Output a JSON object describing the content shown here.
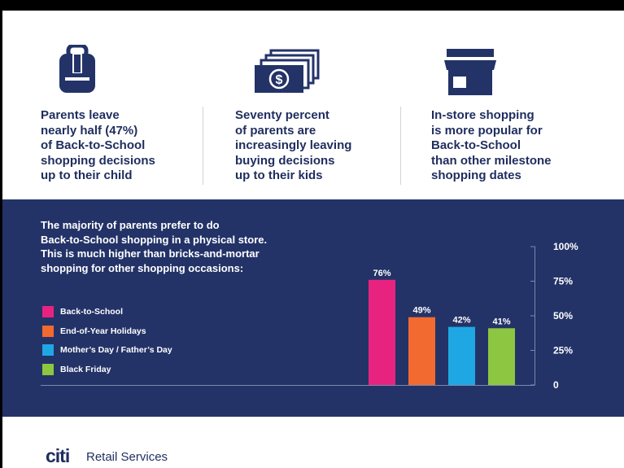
{
  "stats": [
    {
      "icon": "backpack-icon",
      "text": "Parents leave\nnearly half (47%)\nof Back-to-School\nshopping decisions\nup to their child"
    },
    {
      "icon": "money-stack-icon",
      "text": "Seventy percent\nof parents are\nincreasingly leaving\nbuying decisions\nup to their kids"
    },
    {
      "icon": "storefront-icon",
      "text": "In-store shopping\nis more popular for\nBack-to-School\nthan other milestone\nshopping dates"
    }
  ],
  "chart_heading": "The majority of parents prefer to do\nBack-to-School shopping in a physical store.\nThis is much higher than bricks-and-mortar\nshopping for other shopping occasions:",
  "chart_data": {
    "type": "bar",
    "title": "The majority of parents prefer to do Back-to-School shopping in a physical store. This is much higher than bricks-and-mortar shopping for other shopping occasions:",
    "categories": [
      "Back-to-School",
      "End-of-Year Holidays",
      "Mother's Day / Father's Day",
      "Black Friday"
    ],
    "values": [
      76,
      49,
      42,
      41
    ],
    "value_labels": [
      "76%",
      "49%",
      "42%",
      "41%"
    ],
    "colors": [
      "#e8237f",
      "#f26a2f",
      "#1fa7e4",
      "#8dc640"
    ],
    "ylim": [
      0,
      100
    ],
    "yticks": [
      0,
      25,
      50,
      75,
      100
    ],
    "ytick_labels": [
      "0",
      "25%",
      "50%",
      "75%",
      "100%"
    ],
    "xlabel": "",
    "ylabel": "",
    "legend_position": "left",
    "grid": false
  },
  "legend": [
    {
      "label": "Back-to-School",
      "color": "#e8237f"
    },
    {
      "label": "End-of-Year Holidays",
      "color": "#f26a2f"
    },
    {
      "label": "Mother’s Day / Father’s Day",
      "color": "#1fa7e4"
    },
    {
      "label": "Black Friday",
      "color": "#8dc640"
    }
  ],
  "footer": {
    "logo": "citi",
    "text": "Retail Services"
  },
  "colors": {
    "navy": "#233368",
    "text_navy": "#1f2d5e"
  }
}
